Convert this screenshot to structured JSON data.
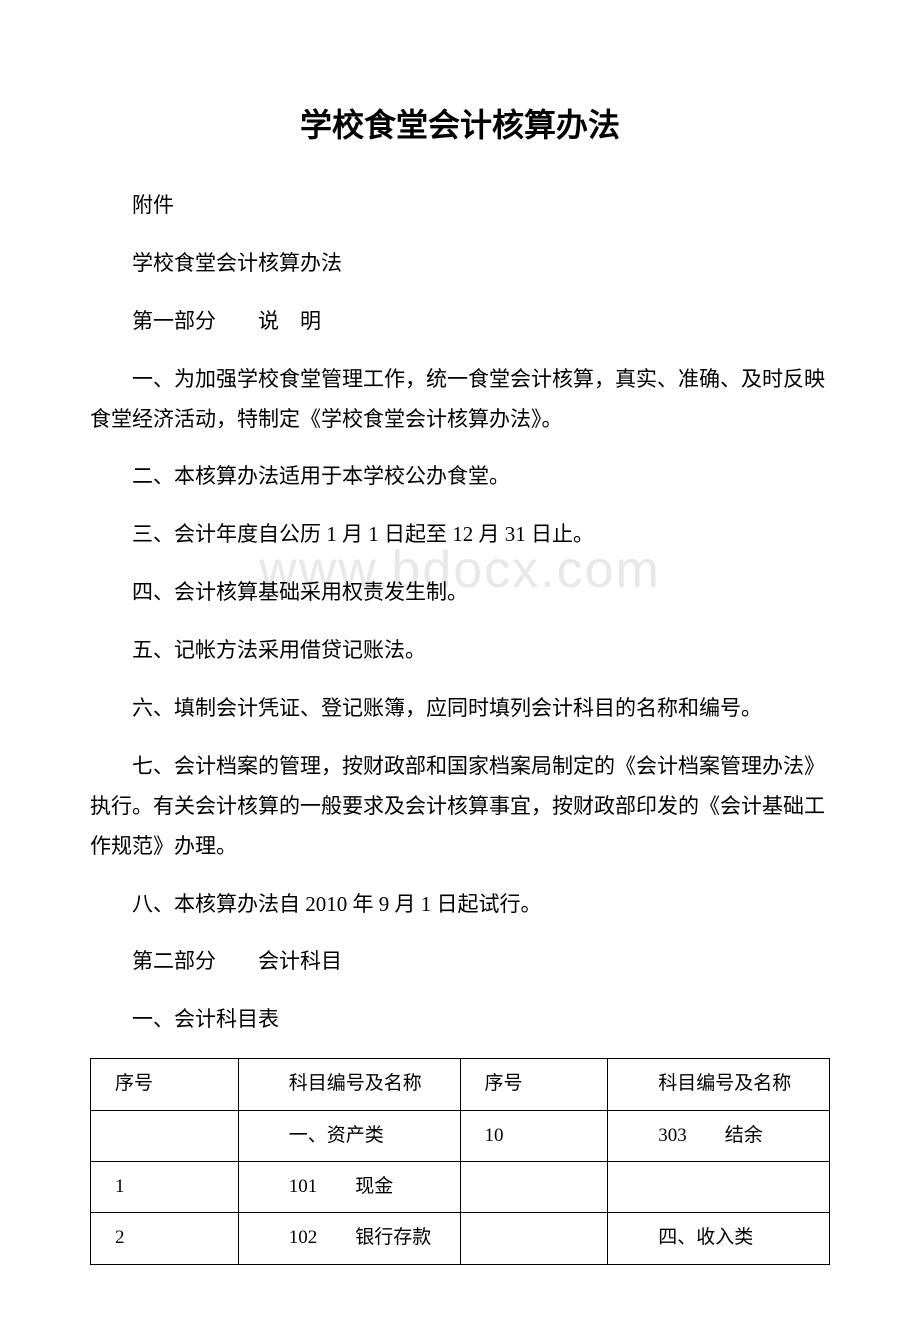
{
  "watermark": "www.bdocx.com",
  "title": "学校食堂会计核算办法",
  "paragraphs": {
    "p1": "附件",
    "p2": "学校食堂会计核算办法",
    "p3": "第一部分　　说　明",
    "p4": "一、为加强学校食堂管理工作，统一食堂会计核算，真实、准确、及时反映食堂经济活动，特制定《学校食堂会计核算办法》。",
    "p5": "二、本核算办法适用于本学校公办食堂。",
    "p6": "三、会计年度自公历 1 月 1 日起至 12 月 31 日止。",
    "p7": "四、会计核算基础采用权责发生制。",
    "p8": "五、记帐方法采用借贷记账法。",
    "p9": "六、填制会计凭证、登记账簿，应同时填列会计科目的名称和编号。",
    "p10": "七、会计档案的管理，按财政部和国家档案局制定的《会计档案管理办法》执行。有关会计核算的一般要求及会计核算事宜，按财政部印发的《会计基础工作规范》办理。",
    "p11": "八、本核算办法自 2010 年 9 月 1 日起试行。",
    "p12": "第二部分　　会计科目",
    "p13": "一、会计科目表"
  },
  "table": {
    "headers": {
      "h1": "序号",
      "h2": "　　科目编号及名称",
      "h3": "序号",
      "h4": "　　科目编号及名称"
    },
    "rows": [
      {
        "c1": "",
        "c2": "　　一、资产类",
        "c3": "10",
        "c4": "　　303　　结余"
      },
      {
        "c1": "1",
        "c2": "　　101　　现金",
        "c3": "",
        "c4": ""
      },
      {
        "c1": "2",
        "c2": "　　102　　银行存款",
        "c3": "",
        "c4": "　　四、收入类"
      }
    ]
  },
  "colors": {
    "text": "#000000",
    "watermark": "#e8e8e8",
    "border": "#000000",
    "background": "#ffffff"
  },
  "typography": {
    "title_fontsize": 32,
    "body_fontsize": 21,
    "table_fontsize": 19,
    "watermark_fontsize": 52,
    "font_family": "SimSun"
  }
}
